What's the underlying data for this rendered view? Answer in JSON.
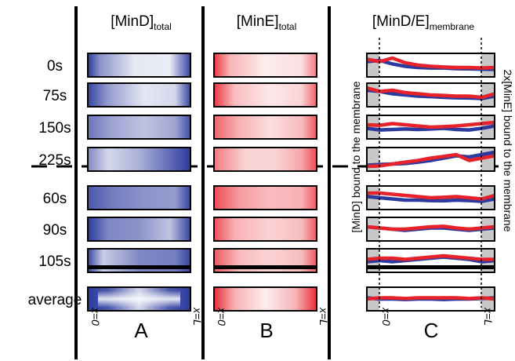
{
  "headers": {
    "a_main": "[MinD]",
    "a_sub": "total",
    "b_main": "[MinE]",
    "b_sub": "total",
    "c_main": "[MinD/E]",
    "c_sub": "membrane"
  },
  "rows": [
    {
      "time": "0s"
    },
    {
      "time": "75s"
    },
    {
      "time": "150s"
    },
    {
      "time": "225s"
    },
    {
      "time": "60s"
    },
    {
      "time": "90s"
    },
    {
      "time": "105s"
    },
    {
      "time": "average"
    }
  ],
  "axis": {
    "left": "x=0",
    "right": "x=L"
  },
  "panels": {
    "a": "A",
    "b": "B",
    "c": "C"
  },
  "side_labels": {
    "mind": "[MinD] bound to the membrane",
    "mine": "2x[MinE] bound to the membrane"
  },
  "colors": {
    "mind": "#2b3a9e",
    "mine": "#e8222b",
    "shade": "#c8c8c8"
  }
}
